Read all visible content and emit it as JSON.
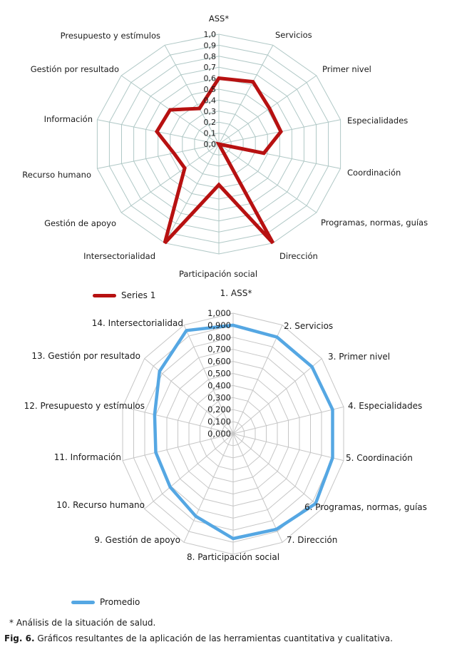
{
  "footnote": {
    "text": "* Análisis de la situación de salud."
  },
  "caption": {
    "prefix": "Fig. 6.",
    "text": " Gráficos resultantes de la aplicación de las herramientas cuantitativa y cualitativa."
  },
  "colors": {
    "series1": "#b71111",
    "promedio": "#55a7e3",
    "grid_chart1": "#b0c8c6",
    "grid_chart2": "#c6c6c6",
    "text": "#1a1a1a",
    "background": "#ffffff"
  },
  "chart_data": [
    {
      "type": "radar",
      "title": "",
      "legend": {
        "label": "Series 1",
        "color": "#b71111",
        "position": "below-left"
      },
      "grid_color": "#b0c8c6",
      "grid": true,
      "axis_range": [
        0,
        1
      ],
      "axis_step": 0.1,
      "scale": {
        "tick_labels": [
          "1,0",
          "0,9",
          "0,8",
          "0,7",
          "0,6",
          "0,5",
          "0,4",
          "0,3",
          "0,2",
          "0,1",
          "0,0"
        ]
      },
      "categories": [
        "ASS*",
        "Servicios",
        "Primer nivel",
        "Especialidades",
        "Coordinación",
        "Programas, normas, guías",
        "Dirección",
        "Participación social",
        "Intersectorialidad",
        "Gestión de apoyo",
        "Recurso humano",
        "Información",
        "Gestión por resultado",
        "Presupuesto y estímulos"
      ],
      "series": [
        {
          "name": "Series 1",
          "color": "#b71111",
          "values": [
            0.6,
            0.63,
            0.52,
            0.51,
            0.37,
            0.0,
            1.0,
            0.37,
            1.0,
            0.35,
            0.37,
            0.51,
            0.5,
            0.36
          ]
        }
      ]
    },
    {
      "type": "radar",
      "title": "",
      "legend": {
        "label": "Promedio",
        "color": "#55a7e3",
        "position": "below-left"
      },
      "grid_color": "#c6c6c6",
      "grid": true,
      "axis_range": [
        0,
        1
      ],
      "axis_step": 0.1,
      "scale": {
        "tick_labels": [
          "1,000",
          "0,900",
          "0,800",
          "0,700",
          "0,600",
          "0,500",
          "0,400",
          "0,300",
          "0,200",
          "0,100",
          "0,000"
        ]
      },
      "categories": [
        "1. ASS*",
        "2. Servicios",
        "3. Primer nivel",
        "4. Especialidades",
        "5. Coordinación",
        "6. Programas, normas, guías",
        "7. Dirección",
        "8. Participación social",
        "9. Gestión de apoyo",
        "10. Recurso humano",
        "11. Información",
        "12. Presupuesto y estímulos",
        "13. Gestión por resultado",
        "14. Intersectorialidad"
      ],
      "series": [
        {
          "name": "Promedio",
          "color": "#55a7e3",
          "values": [
            0.9,
            0.89,
            0.89,
            0.9,
            0.9,
            0.93,
            0.88,
            0.87,
            0.76,
            0.71,
            0.7,
            0.71,
            0.83,
            0.95
          ]
        }
      ]
    }
  ]
}
